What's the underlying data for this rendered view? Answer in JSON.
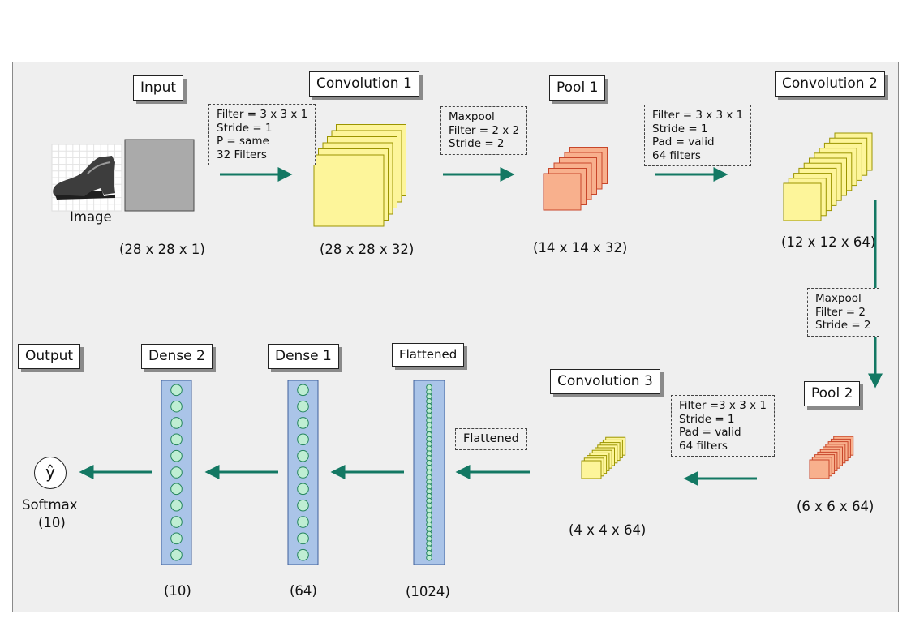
{
  "colors": {
    "arrow": "#137863",
    "conv_fill": "#fdf59a",
    "conv_stroke": "#9b9400",
    "pool_fill": "#f8b08d",
    "pool_stroke": "#c8462a",
    "dense_fill": "#aac4e8",
    "dense_stroke": "#3f5f9b",
    "neuron_fill": "#bfeed3",
    "neuron_stroke": "#24855c",
    "panel_bg": "#efefef"
  },
  "stages": {
    "input": {
      "title": "Input",
      "image_label": "Image",
      "dim": "(28 x 28 x 1)"
    },
    "conv1": {
      "title": "Convolution 1",
      "dim": "(28 x 28 x 32)"
    },
    "pool1": {
      "title": "Pool 1",
      "dim": "(14 x 14 x 32)"
    },
    "conv2": {
      "title": "Convolution 2",
      "dim": "(12 x 12 x 64)"
    },
    "pool2": {
      "title": "Pool 2",
      "dim": "(6 x 6 x 64)"
    },
    "conv3": {
      "title": "Convolution 3",
      "dim": "(4 x 4 x 64)"
    },
    "flattened": {
      "title": "Flattened",
      "dim": "(1024)"
    },
    "dense1": {
      "title": "Dense 1",
      "dim": "(64)"
    },
    "dense2": {
      "title": "Dense 2",
      "dim": "(10)"
    },
    "output": {
      "title": "Output",
      "symbol": "ŷ",
      "activation": "Softmax",
      "units": "(10)"
    }
  },
  "notes": {
    "conv1": [
      "Filter = 3 x 3 x 1",
      "Stride = 1",
      "P = same",
      "32 Filters"
    ],
    "pool1": [
      "Maxpool",
      "Filter = 2 x 2",
      "Stride = 2"
    ],
    "conv2": [
      "Filter = 3 x 3 x 1",
      "Stride = 1",
      "Pad = valid",
      "64 filters"
    ],
    "pool2": [
      "Maxpool",
      "Filter = 2",
      "Stride = 2"
    ],
    "conv3": [
      "Filter =3 x 3 x 1",
      "Stride = 1",
      "Pad = valid",
      "64 filters"
    ],
    "flatten": [
      "Flattened"
    ]
  }
}
